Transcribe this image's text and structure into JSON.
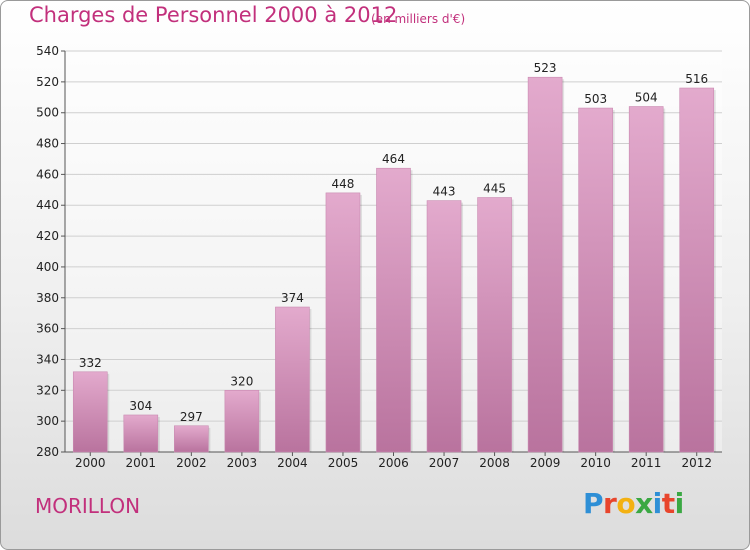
{
  "title": "Charges de Personnel 2000 à 2012",
  "subtitle": "(en milliers d'€)",
  "commune": "MORILLON",
  "brand": {
    "letters": [
      "P",
      "r",
      "o",
      "x",
      "i",
      "t",
      "i"
    ],
    "colors": [
      "#2e8fd6",
      "#e8452c",
      "#f3b112",
      "#3aa843",
      "#2e8fd6",
      "#e8452c",
      "#3aa843"
    ]
  },
  "colors": {
    "bar_top": "#e3aacd",
    "bar_bottom": "#b9739e",
    "title": "#c2307c"
  },
  "chart_data": {
    "type": "bar",
    "categories": [
      "2000",
      "2001",
      "2002",
      "2003",
      "2004",
      "2005",
      "2006",
      "2007",
      "2008",
      "2009",
      "2010",
      "2011",
      "2012"
    ],
    "values": [
      332,
      304,
      297,
      320,
      374,
      448,
      464,
      443,
      445,
      523,
      503,
      504,
      516
    ],
    "ylim": [
      280,
      540
    ],
    "yticks": [
      280,
      300,
      320,
      340,
      360,
      380,
      400,
      420,
      440,
      460,
      480,
      500,
      520,
      540
    ],
    "grid": true
  }
}
